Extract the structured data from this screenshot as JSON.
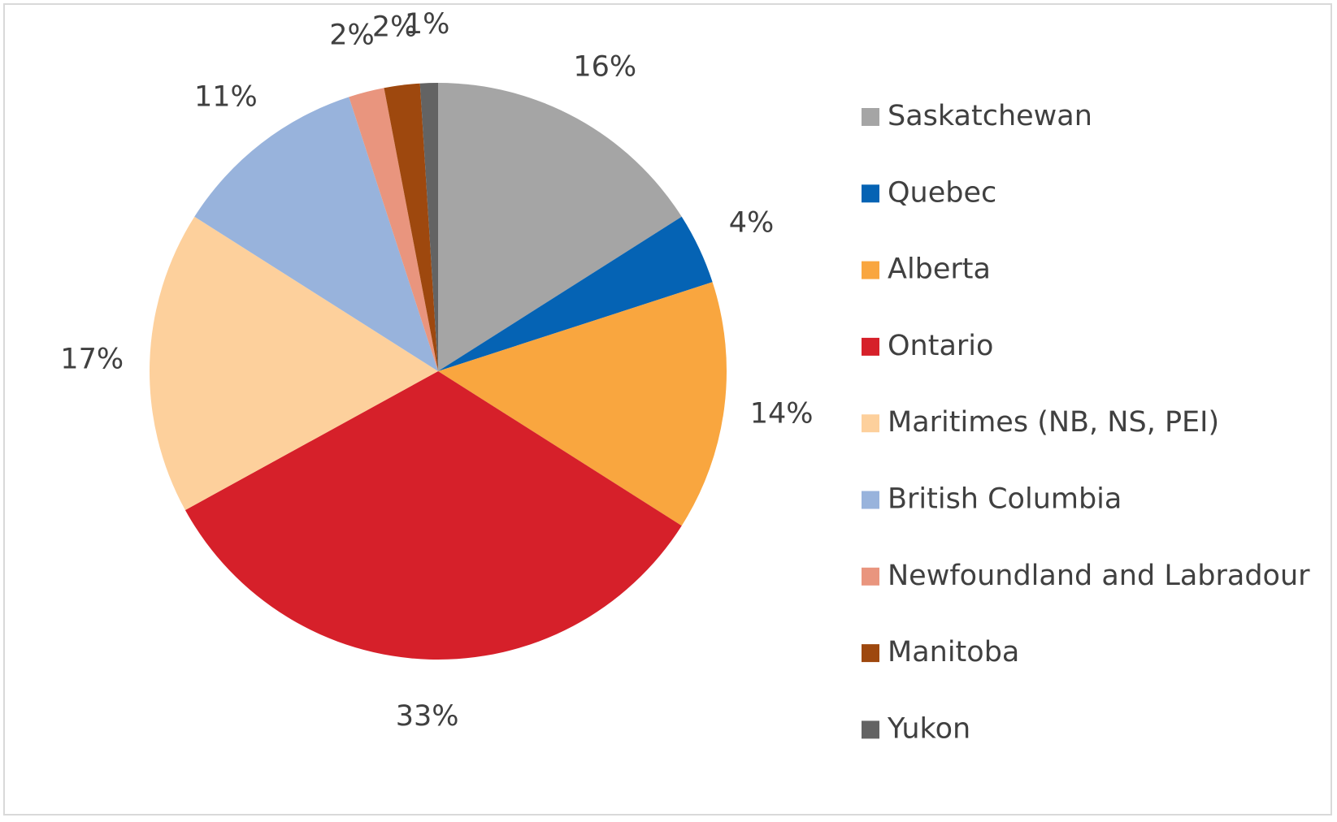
{
  "chart_data": {
    "type": "pie",
    "categories": [
      "Saskatchewan",
      "Quebec",
      "Alberta",
      "Ontario",
      "Maritimes (NB, NS, PEI)",
      "British Columbia",
      "Newfoundland and Labradour",
      "Manitoba",
      "Yukon"
    ],
    "values": [
      16,
      4,
      14,
      33,
      17,
      11,
      2,
      2,
      1
    ],
    "value_labels": [
      "16%",
      "4%",
      "14%",
      "33%",
      "17%",
      "11%",
      "2%",
      "2%",
      "1%"
    ],
    "colors": [
      "#a5a5a5",
      "#0563b4",
      "#f9a63f",
      "#d6202a",
      "#fdd09c",
      "#98b3dc",
      "#e9957e",
      "#9e480e",
      "#636363"
    ],
    "legend": "right"
  }
}
